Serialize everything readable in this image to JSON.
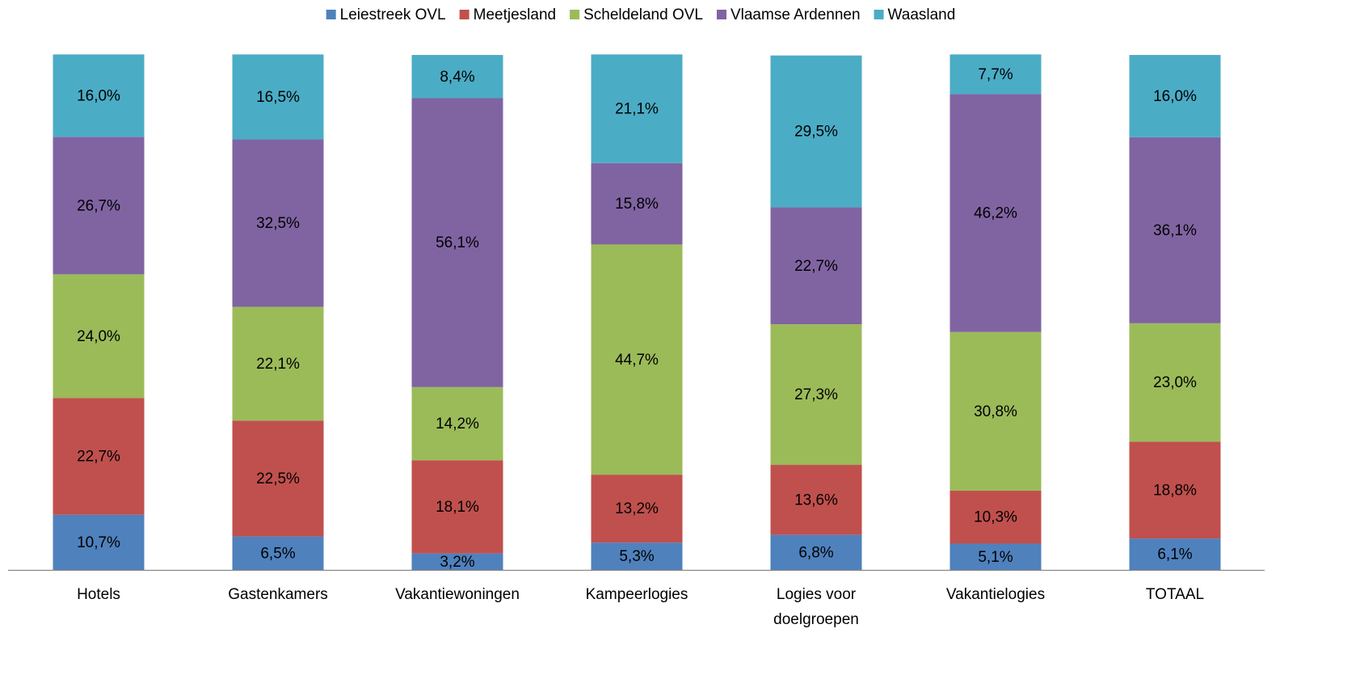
{
  "chart_data": {
    "type": "stacked_bar",
    "categories": [
      "Hotels",
      "Gastenkamers",
      "Vakantiewoningen",
      "Kampeerlogies",
      "Logies voor doelgroepen",
      "Vakantielogies",
      "TOTAAL"
    ],
    "ylim": [
      0,
      100
    ],
    "legend": "top",
    "series": [
      {
        "name": "Leiestreek OVL",
        "color": "#4f81bd",
        "values": [
          10.7,
          6.5,
          3.2,
          5.3,
          6.8,
          5.1,
          6.1
        ],
        "value_labels": [
          "10,7%",
          "6,5%",
          "3,2%",
          "5,3%",
          "6,8%",
          "5,1%",
          "6,1%"
        ]
      },
      {
        "name": "Meetjesland",
        "color": "#c0504d",
        "values": [
          22.7,
          22.5,
          18.1,
          13.2,
          13.6,
          10.3,
          18.8
        ],
        "value_labels": [
          "22,7%",
          "22,5%",
          "18,1%",
          "13,2%",
          "13,6%",
          "10,3%",
          "18,8%"
        ]
      },
      {
        "name": "Scheldeland OVL",
        "color": "#9bbb59",
        "values": [
          24.0,
          22.1,
          14.2,
          44.7,
          27.3,
          30.8,
          23.0
        ],
        "value_labels": [
          "24,0%",
          "22,1%",
          "14,2%",
          "44,7%",
          "27,3%",
          "30,8%",
          "23,0%"
        ]
      },
      {
        "name": "Vlaamse Ardennen",
        "color": "#8064a2",
        "values": [
          26.7,
          32.5,
          56.1,
          15.8,
          22.7,
          46.2,
          36.1
        ],
        "value_labels": [
          "26,7%",
          "32,5%",
          "56,1%",
          "15,8%",
          "22,7%",
          "46,2%",
          "36,1%"
        ]
      },
      {
        "name": "Waasland",
        "color": "#4bacc6",
        "values": [
          16.0,
          16.5,
          8.4,
          21.1,
          29.5,
          7.7,
          16.0
        ],
        "value_labels": [
          "16,0%",
          "16,5%",
          "8,4%",
          "21,1%",
          "29,5%",
          "7,7%",
          "16,0%"
        ]
      }
    ]
  }
}
